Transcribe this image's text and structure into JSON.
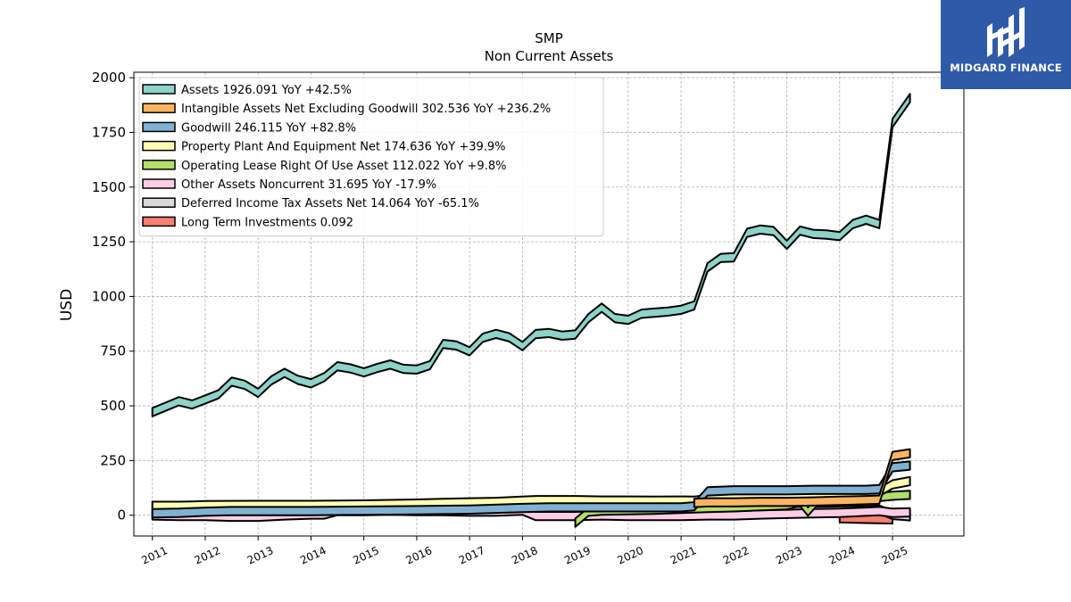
{
  "logo": {
    "text": "MIDGARD FINANCE",
    "icon": "midgard-logo-icon",
    "color": "#2f5aa8"
  },
  "chart_data": {
    "type": "area",
    "title": "SMP",
    "subtitle": "Non Current  Assets",
    "ylabel": "USD",
    "xlabel": "",
    "ylim": [
      -95,
      2025
    ],
    "xlim": [
      2010.65,
      2026.35
    ],
    "yticks": [
      0,
      250,
      500,
      750,
      1000,
      1250,
      1500,
      1750,
      2000
    ],
    "xticks": [
      "2011",
      "2012",
      "2013",
      "2014",
      "2015",
      "2016",
      "2017",
      "2018",
      "2019",
      "2020",
      "2021",
      "2022",
      "2023",
      "2024",
      "2025"
    ],
    "grid": true,
    "legend_position": "top-left",
    "band_thickness": 38,
    "series": [
      {
        "name": "Assets  1926.091 YoY +42.5%",
        "color": "#8dd3c7",
        "points": [
          [
            2011.0,
            490
          ],
          [
            2011.25,
            515
          ],
          [
            2011.5,
            540
          ],
          [
            2011.75,
            525
          ],
          [
            2012.0,
            548
          ],
          [
            2012.25,
            572
          ],
          [
            2012.5,
            630
          ],
          [
            2012.75,
            615
          ],
          [
            2013.0,
            578
          ],
          [
            2013.25,
            635
          ],
          [
            2013.5,
            670
          ],
          [
            2013.75,
            638
          ],
          [
            2014.0,
            622
          ],
          [
            2014.25,
            650
          ],
          [
            2014.5,
            700
          ],
          [
            2014.75,
            690
          ],
          [
            2015.0,
            672
          ],
          [
            2015.25,
            692
          ],
          [
            2015.5,
            708
          ],
          [
            2015.75,
            688
          ],
          [
            2016.0,
            685
          ],
          [
            2016.25,
            705
          ],
          [
            2016.5,
            802
          ],
          [
            2016.75,
            795
          ],
          [
            2017.0,
            768
          ],
          [
            2017.25,
            830
          ],
          [
            2017.5,
            848
          ],
          [
            2017.75,
            832
          ],
          [
            2018.0,
            792
          ],
          [
            2018.25,
            847
          ],
          [
            2018.5,
            852
          ],
          [
            2018.75,
            840
          ],
          [
            2019.0,
            845
          ],
          [
            2019.25,
            920
          ],
          [
            2019.5,
            968
          ],
          [
            2019.75,
            920
          ],
          [
            2020.0,
            912
          ],
          [
            2020.25,
            940
          ],
          [
            2020.5,
            945
          ],
          [
            2020.75,
            950
          ],
          [
            2021.0,
            958
          ],
          [
            2021.25,
            978
          ],
          [
            2021.5,
            1152
          ],
          [
            2021.75,
            1195
          ],
          [
            2022.0,
            1198
          ],
          [
            2022.25,
            1310
          ],
          [
            2022.5,
            1325
          ],
          [
            2022.75,
            1318
          ],
          [
            2023.0,
            1255
          ],
          [
            2023.25,
            1320
          ],
          [
            2023.5,
            1305
          ],
          [
            2023.75,
            1302
          ],
          [
            2024.0,
            1295
          ],
          [
            2024.25,
            1350
          ],
          [
            2024.5,
            1370
          ],
          [
            2024.75,
            1350
          ],
          [
            2025.0,
            1812
          ],
          [
            2025.33,
            1926
          ]
        ]
      },
      {
        "name": "Intangible Assets Net Excluding Goodwill  302.536 YoY +236.2%",
        "color": "#fdb462",
        "points": [
          [
            2021.25,
            75
          ],
          [
            2021.5,
            78
          ],
          [
            2022.0,
            78
          ],
          [
            2022.5,
            80
          ],
          [
            2023.0,
            80
          ],
          [
            2023.5,
            82
          ],
          [
            2024.0,
            85
          ],
          [
            2024.5,
            88
          ],
          [
            2024.75,
            90
          ],
          [
            2025.0,
            290
          ],
          [
            2025.33,
            302
          ]
        ]
      },
      {
        "name": "Goodwill  246.115 YoY +82.8%",
        "color": "#80b1d3",
        "points": [
          [
            2011.0,
            28
          ],
          [
            2011.5,
            30
          ],
          [
            2012.0,
            35
          ],
          [
            2012.5,
            38
          ],
          [
            2013.0,
            38
          ],
          [
            2014.0,
            38
          ],
          [
            2015.0,
            40
          ],
          [
            2016.0,
            42
          ],
          [
            2017.0,
            45
          ],
          [
            2018.0,
            52
          ],
          [
            2018.5,
            55
          ],
          [
            2019.0,
            55
          ],
          [
            2020.0,
            55
          ],
          [
            2021.0,
            55
          ],
          [
            2021.25,
            60
          ],
          [
            2021.5,
            128
          ],
          [
            2022.0,
            133
          ],
          [
            2022.5,
            133
          ],
          [
            2023.0,
            133
          ],
          [
            2023.5,
            135
          ],
          [
            2024.0,
            135
          ],
          [
            2024.5,
            135
          ],
          [
            2024.75,
            138
          ],
          [
            2025.0,
            238
          ],
          [
            2025.33,
            246
          ]
        ]
      },
      {
        "name": "Property Plant And Equipment Net  174.636 YoY +39.9%",
        "color": "#ffffb3",
        "points": [
          [
            2011.0,
            62
          ],
          [
            2011.5,
            62
          ],
          [
            2011.75,
            63
          ],
          [
            2012.0,
            65
          ],
          [
            2013.0,
            66
          ],
          [
            2014.0,
            66
          ],
          [
            2015.0,
            68
          ],
          [
            2015.5,
            70
          ],
          [
            2016.0,
            72
          ],
          [
            2016.5,
            75
          ],
          [
            2017.0,
            78
          ],
          [
            2017.5,
            80
          ],
          [
            2018.0,
            85
          ],
          [
            2018.25,
            88
          ],
          [
            2018.5,
            88
          ],
          [
            2019.0,
            88
          ],
          [
            2019.5,
            86
          ],
          [
            2020.0,
            86
          ],
          [
            2020.5,
            85
          ],
          [
            2021.0,
            86
          ],
          [
            2021.25,
            85
          ],
          [
            2021.5,
            92
          ],
          [
            2022.0,
            96
          ],
          [
            2022.5,
            98
          ],
          [
            2023.0,
            100
          ],
          [
            2023.5,
            102
          ],
          [
            2024.0,
            110
          ],
          [
            2024.5,
            118
          ],
          [
            2024.75,
            125
          ],
          [
            2025.0,
            160
          ],
          [
            2025.33,
            175
          ]
        ]
      },
      {
        "name": "Operating Lease Right Of Use Asset  112.022 YoY +9.8%",
        "color": "#b3de69",
        "points": [
          [
            2019.0,
            -15
          ],
          [
            2019.25,
            35
          ],
          [
            2019.5,
            40
          ],
          [
            2020.0,
            42
          ],
          [
            2020.5,
            44
          ],
          [
            2021.0,
            48
          ],
          [
            2021.5,
            52
          ],
          [
            2022.0,
            55
          ],
          [
            2022.5,
            60
          ],
          [
            2022.75,
            62
          ],
          [
            2023.0,
            65
          ],
          [
            2023.25,
            80
          ],
          [
            2023.4,
            35
          ],
          [
            2023.6,
            90
          ],
          [
            2024.0,
            98
          ],
          [
            2024.5,
            100
          ],
          [
            2024.75,
            102
          ],
          [
            2025.0,
            108
          ],
          [
            2025.33,
            112
          ]
        ]
      },
      {
        "name": "Other Assets Noncurrent  31.695 YoY -17.9%",
        "color": "#fccde5",
        "points": [
          [
            2011.0,
            18
          ],
          [
            2011.5,
            15
          ],
          [
            2012.0,
            15
          ],
          [
            2012.5,
            12
          ],
          [
            2013.0,
            12
          ],
          [
            2013.5,
            18
          ],
          [
            2014.0,
            22
          ],
          [
            2014.25,
            22
          ],
          [
            2014.5,
            38
          ],
          [
            2015.0,
            38
          ],
          [
            2015.5,
            40
          ],
          [
            2016.0,
            38
          ],
          [
            2016.5,
            38
          ],
          [
            2017.0,
            35
          ],
          [
            2017.5,
            35
          ],
          [
            2017.75,
            38
          ],
          [
            2018.0,
            40
          ],
          [
            2018.25,
            15
          ],
          [
            2018.5,
            15
          ],
          [
            2019.0,
            15
          ],
          [
            2019.5,
            18
          ],
          [
            2020.0,
            15
          ],
          [
            2020.5,
            15
          ],
          [
            2021.0,
            15
          ],
          [
            2021.5,
            18
          ],
          [
            2022.0,
            18
          ],
          [
            2022.5,
            22
          ],
          [
            2023.0,
            25
          ],
          [
            2023.5,
            28
          ],
          [
            2024.0,
            30
          ],
          [
            2024.5,
            35
          ],
          [
            2024.75,
            38
          ],
          [
            2025.0,
            30
          ],
          [
            2025.33,
            32
          ]
        ]
      },
      {
        "name": "Deferred Income Tax Assets Net  14.064 YoY -65.1%",
        "color": "#d9d9d9",
        "points": [
          [
            2018.25,
            32
          ],
          [
            2018.5,
            35
          ],
          [
            2019.0,
            40
          ],
          [
            2019.5,
            45
          ],
          [
            2020.0,
            48
          ],
          [
            2020.5,
            48
          ],
          [
            2021.0,
            48
          ],
          [
            2021.5,
            42
          ],
          [
            2022.0,
            42
          ],
          [
            2022.5,
            40
          ],
          [
            2023.0,
            38
          ],
          [
            2023.5,
            38
          ],
          [
            2024.0,
            40
          ],
          [
            2024.5,
            42
          ],
          [
            2024.75,
            45
          ],
          [
            2025.0,
            20
          ],
          [
            2025.33,
            14
          ]
        ]
      },
      {
        "name": "Long Term Investments  0.092",
        "color": "#fb8072",
        "points": [
          [
            2024.0,
            5
          ],
          [
            2024.5,
            2
          ],
          [
            2025.0,
            0.092
          ]
        ]
      }
    ]
  }
}
